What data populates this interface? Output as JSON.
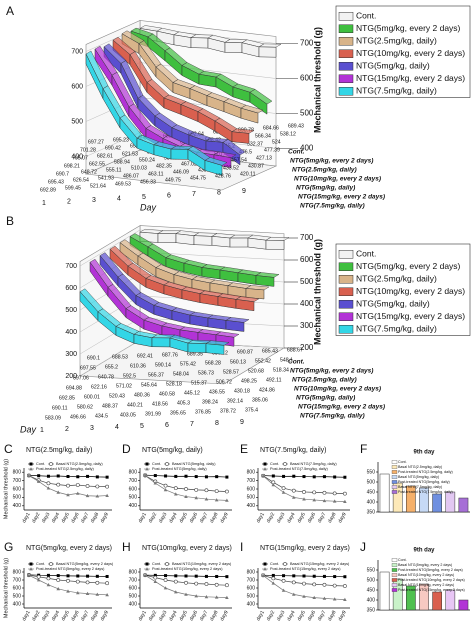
{
  "chart_data": [
    {
      "type": "ribbon",
      "panel": "A",
      "xlabel": "Day",
      "ylabel": "Mechanical threshold (g)",
      "x": [
        1,
        2,
        3,
        4,
        5,
        6,
        7,
        8,
        9
      ],
      "ylim": [
        350,
        720
      ],
      "yticks": [
        400,
        500,
        600,
        700
      ],
      "series": [
        {
          "name": "Cont.",
          "color": "#f2f2f2",
          "values": [
            697.27,
            695.23,
            690.54,
            688.21,
            692.64,
            686.18,
            690.78,
            684.66,
            689.43
          ]
        },
        {
          "name": "NTG(5mg/kg, every 2 days)",
          "color": "#3fbf3f",
          "values": [
            701.28,
            690.42,
            656.4,
            620.14,
            600.91,
            598.42,
            575.94,
            566.34,
            538.12
          ]
        },
        {
          "name": "NTG(2.5mg/kg, daily)",
          "color": "#d8b48a",
          "values": [
            705.07,
            682.61,
            621.53,
            582.84,
            571.13,
            556.75,
            545.2,
            532.37,
            524
          ]
        },
        {
          "name": "NTG(10mg/kg, every 2 days)",
          "color": "#d9604f",
          "values": [
            698.21,
            662.55,
            588.94,
            550.24,
            537.13,
            522.48,
            501.41,
            476.5,
            477.39
          ]
        },
        {
          "name": "NTG(5mg/kg, daily)",
          "color": "#5a4fd0",
          "values": [
            690.7,
            648.72,
            555.11,
            510.03,
            482.35,
            467.02,
            455.87,
            457.54,
            427.13
          ]
        },
        {
          "name": "NTG(15mg/kg, every 2 days)",
          "color": "#b233d6",
          "values": [
            695.43,
            626.54,
            541.93,
            486.07,
            463.11,
            446.09,
            435.21,
            433.52,
            430.87
          ]
        },
        {
          "name": "NTG(7.5mg/kg, daily)",
          "color": "#33d6e6",
          "values": [
            692.89,
            599.45,
            521.64,
            469.53,
            456.33,
            449.75,
            454.75,
            428.76,
            420.11
          ]
        }
      ]
    },
    {
      "type": "ribbon",
      "panel": "B",
      "xlabel": "Day",
      "ylabel": "Mechanical threshold (g)",
      "x": [
        1,
        2,
        3,
        4,
        5,
        6,
        7,
        8,
        9
      ],
      "ylim": [
        200,
        720
      ],
      "yticks": [
        200,
        300,
        400,
        500,
        600,
        700
      ],
      "series": [
        {
          "name": "Cont.",
          "color": "#f2f2f2",
          "values": [
            690.1,
            688.53,
            692.41,
            687.76,
            689.35,
            686.12,
            690.87,
            685.43,
            688.67
          ]
        },
        {
          "name": "NTG(5mg/kg, every 2 days)",
          "color": "#3fbf3f",
          "values": [
            697.55,
            655.2,
            610.36,
            590.14,
            575.42,
            568.28,
            560.13,
            552.42,
            548.1
          ]
        },
        {
          "name": "NTG(2.5mg/kg, daily)",
          "color": "#d8b48a",
          "values": [
            697.06,
            640.78,
            592.5,
            565.37,
            548.04,
            536.73,
            528.57,
            520.68,
            518.34
          ]
        },
        {
          "name": "NTG(10mg/kg, every 2 days)",
          "color": "#d9604f",
          "values": [
            694.88,
            622.16,
            571.02,
            545.64,
            528.18,
            515.37,
            506.72,
            498.25,
            492.11
          ]
        },
        {
          "name": "NTG(5mg/kg, daily)",
          "color": "#5a4fd0",
          "values": [
            692.85,
            600.01,
            520.43,
            480.36,
            460.58,
            445.12,
            436.55,
            430.18,
            424.86
          ]
        },
        {
          "name": "NTG(15mg/kg, every 2 days)",
          "color": "#b233d6",
          "values": [
            690.11,
            580.62,
            488.37,
            440.21,
            418.56,
            405.3,
            398.24,
            392.14,
            385.06
          ]
        },
        {
          "name": "NTG(7.5mg/kg, daily)",
          "color": "#33d6e6",
          "values": [
            583.09,
            496.66,
            434.5,
            403.05,
            391.99,
            395.65,
            376.85,
            378.72,
            375.4
          ]
        }
      ]
    },
    {
      "type": "line",
      "panel": "C",
      "title": "NTG(2.5mg/kg, daily)",
      "ylabel": "Mechanical threshold (g)",
      "categories": [
        "day1",
        "day2",
        "day3",
        "day4",
        "day5",
        "day6",
        "day7",
        "day8",
        "day9"
      ],
      "ylim": [
        350,
        850
      ],
      "yticks": [
        400,
        500,
        600,
        700,
        800
      ],
      "series": [
        {
          "name": "Cont.",
          "color": "#000000",
          "marker": "square",
          "values": [
            762,
            758,
            752,
            755,
            749,
            746,
            750,
            744,
            741
          ]
        },
        {
          "name": "Basal NTG(2.5mg/kg, daily)",
          "color": "#444444",
          "marker": "circle",
          "values": [
            760,
            705,
            668,
            652,
            640,
            648,
            635,
            630,
            628
          ]
        },
        {
          "name": "Post-treated NTG(2.5mg/kg, daily)",
          "color": "#777777",
          "marker": "triangle",
          "values": [
            758,
            690,
            610,
            560,
            530,
            548,
            520,
            515,
            522
          ]
        }
      ]
    },
    {
      "type": "line",
      "panel": "D",
      "title": "NTG(5mg/kg, daily)",
      "categories": [
        "day1",
        "day2",
        "day3",
        "day4",
        "day5",
        "day6",
        "day7",
        "day8",
        "day9"
      ],
      "ylim": [
        350,
        850
      ],
      "yticks": [
        400,
        500,
        600,
        700,
        800
      ],
      "series": [
        {
          "name": "Cont.",
          "color": "#000000",
          "marker": "square",
          "values": [
            765,
            760,
            755,
            750,
            752,
            748,
            745,
            747,
            742
          ]
        },
        {
          "name": "Basal NTG(5mg/kg, daily)",
          "color": "#444444",
          "marker": "circle",
          "values": [
            760,
            690,
            640,
            610,
            600,
            590,
            585,
            575,
            570
          ]
        },
        {
          "name": "Post-treated NTG(5mg/kg, daily)",
          "color": "#777777",
          "marker": "triangle",
          "values": [
            760,
            670,
            590,
            540,
            510,
            495,
            480,
            470,
            465
          ]
        }
      ]
    },
    {
      "type": "line",
      "panel": "E",
      "title": "NTG(7.5mg/kg, daily)",
      "categories": [
        "day1",
        "day2",
        "day3",
        "day4",
        "day5",
        "day6",
        "day7",
        "day8",
        "day9"
      ],
      "ylim": [
        350,
        850
      ],
      "yticks": [
        400,
        500,
        600,
        700,
        800
      ],
      "series": [
        {
          "name": "Cont.",
          "color": "#000000",
          "marker": "square",
          "values": [
            760,
            755,
            750,
            752,
            748,
            745,
            747,
            743,
            740
          ]
        },
        {
          "name": "Basal NTG(7.5mg/kg, daily)",
          "color": "#444444",
          "marker": "circle",
          "values": [
            758,
            680,
            610,
            580,
            565,
            560,
            555,
            548,
            545
          ]
        },
        {
          "name": "Post-treated NTG(7.5mg/kg, daily)",
          "color": "#777777",
          "marker": "triangle",
          "values": [
            756,
            650,
            560,
            500,
            480,
            470,
            460,
            455,
            450
          ]
        }
      ]
    },
    {
      "type": "bar",
      "panel": "F",
      "title": "9th day",
      "ylim": [
        350,
        600
      ],
      "yticks": [
        350,
        400,
        450,
        500,
        550
      ],
      "series": [
        {
          "name": "Cont.",
          "color": "#ffffff",
          "values": [
            540
          ]
        },
        {
          "name": "Basal NTG(2.5mg/kg, daily)",
          "color": "#fde9b8",
          "values": [
            495
          ]
        },
        {
          "name": "Post-treated NTG(2.5mg/kg, daily)",
          "color": "#f5b06a",
          "values": [
            480
          ]
        },
        {
          "name": "Basal NTG(5mg/kg, daily)",
          "color": "#c6d9f5",
          "values": [
            470
          ]
        },
        {
          "name": "Post-treated NTG(5mg/kg, daily)",
          "color": "#6f8fe0",
          "values": [
            440
          ]
        },
        {
          "name": "Basal NTG(7.5mg/kg, daily)",
          "color": "#e2c8f2",
          "values": [
            450
          ]
        },
        {
          "name": "Post-treated NTG(7.5mg/kg, daily)",
          "color": "#a66fd6",
          "values": [
            420
          ]
        }
      ]
    },
    {
      "type": "line",
      "panel": "G",
      "title": "NTG(5mg/kg, every 2 days)",
      "ylabel": "Mechanical threshold (g)",
      "categories": [
        "day1",
        "day2",
        "day3",
        "day4",
        "day5",
        "day6",
        "day7",
        "day8",
        "day9"
      ],
      "ylim": [
        350,
        850
      ],
      "yticks": [
        400,
        500,
        600,
        700,
        800
      ],
      "series": [
        {
          "name": "Cont.",
          "color": "#000000",
          "marker": "square",
          "values": [
            765,
            760,
            758,
            755,
            752,
            750,
            748,
            746,
            744
          ]
        },
        {
          "name": "Basal NTG(5mg/kg, every 2 days)",
          "color": "#444444",
          "marker": "circle",
          "values": [
            760,
            740,
            720,
            700,
            690,
            680,
            670,
            665,
            660
          ]
        },
        {
          "name": "Post-treated NTG(5mg/kg, every 2 days)",
          "color": "#777777",
          "marker": "triangle",
          "values": [
            758,
            700,
            640,
            590,
            560,
            540,
            530,
            520,
            515
          ]
        }
      ]
    },
    {
      "type": "line",
      "panel": "H",
      "title": "NTG(10mg/kg, every 2 days)",
      "categories": [
        "day1",
        "day2",
        "day3",
        "day4",
        "day5",
        "day6",
        "day7",
        "day8",
        "day9"
      ],
      "ylim": [
        350,
        850
      ],
      "yticks": [
        400,
        500,
        600,
        700,
        800
      ],
      "series": [
        {
          "name": "Cont.",
          "color": "#000000",
          "marker": "square",
          "values": [
            762,
            758,
            755,
            752,
            750,
            748,
            745,
            744,
            742
          ]
        },
        {
          "name": "Basal NTG(10mg/kg, every 2 days)",
          "color": "#444444",
          "marker": "circle",
          "values": [
            760,
            730,
            700,
            680,
            665,
            655,
            650,
            640,
            635
          ]
        },
        {
          "name": "Post-treated NTG(10mg/kg, every 2 days)",
          "color": "#777777",
          "marker": "triangle",
          "values": [
            758,
            680,
            600,
            550,
            520,
            500,
            490,
            485,
            480
          ]
        }
      ]
    },
    {
      "type": "line",
      "panel": "I",
      "title": "NTG(15mg/kg, every 2 days)",
      "categories": [
        "day1",
        "day2",
        "day3",
        "day4",
        "day5",
        "day6",
        "day7",
        "day8",
        "day9"
      ],
      "ylim": [
        350,
        850
      ],
      "yticks": [
        400,
        500,
        600,
        700,
        800
      ],
      "series": [
        {
          "name": "Cont.",
          "color": "#000000",
          "marker": "square",
          "values": [
            760,
            757,
            754,
            752,
            750,
            747,
            745,
            743,
            741
          ]
        },
        {
          "name": "Basal NTG(15mg/kg, every 2 days)",
          "color": "#444444",
          "marker": "circle",
          "values": [
            758,
            720,
            690,
            670,
            655,
            645,
            640,
            630,
            625
          ]
        },
        {
          "name": "Post-treated NTG(15mg/kg, every 2 days)",
          "color": "#777777",
          "marker": "triangle",
          "values": [
            756,
            660,
            570,
            520,
            495,
            480,
            470,
            462,
            455
          ]
        }
      ]
    },
    {
      "type": "bar",
      "panel": "J",
      "title": "9th day",
      "ylim": [
        350,
        600
      ],
      "yticks": [
        350,
        400,
        450,
        500,
        550
      ],
      "series": [
        {
          "name": "Cont.",
          "color": "#ffffff",
          "values": [
            540
          ]
        },
        {
          "name": "Basal NTG(5mg/kg, every 2 days)",
          "color": "#c9f2c9",
          "values": [
            505
          ]
        },
        {
          "name": "Post-treated NTG(5mg/kg, every 2 days)",
          "color": "#4fc04f",
          "values": [
            470
          ]
        },
        {
          "name": "Basal NTG(10mg/kg, every 2 days)",
          "color": "#f7c9c2",
          "values": [
            480
          ]
        },
        {
          "name": "Post-treated NTG(10mg/kg, every 2 days)",
          "color": "#d9604f",
          "values": [
            440
          ]
        },
        {
          "name": "Basal NTG(15mg/kg, every 2 days)",
          "color": "#e8c6f5",
          "values": [
            450
          ]
        },
        {
          "name": "Post-treated NTG(15mg/kg, every 2 days)",
          "color": "#b233d6",
          "values": [
            400
          ]
        }
      ]
    }
  ]
}
